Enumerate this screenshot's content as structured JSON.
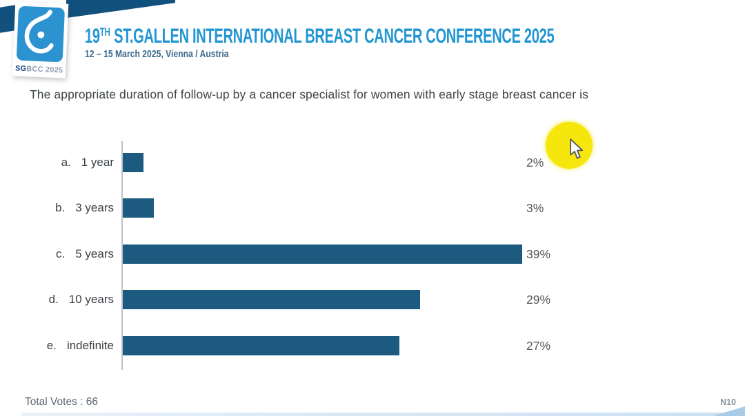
{
  "header": {
    "logo": {
      "glyph": "breast-drop-icon",
      "badge_strong": "SG",
      "badge_rest": "BCC 2025"
    },
    "title_num": "19",
    "title_sup": "TH",
    "title_rest": " ST.GALLEN INTERNATIONAL BREAST CANCER CONFERENCE 2025",
    "subtitle": "12 – 15 March 2025, Vienna / Austria"
  },
  "question": "The appropriate duration of follow-up by a cancer specialist for women with early stage breast cancer is",
  "chart_data": {
    "type": "bar",
    "orientation": "horizontal",
    "letters": [
      "a.",
      "b.",
      "c.",
      "d.",
      "e."
    ],
    "categories": [
      "1 year",
      "3 years",
      "5 years",
      "10 years",
      "indefinite"
    ],
    "values": [
      2,
      3,
      39,
      29,
      27
    ],
    "value_suffix": "%",
    "xlim": [
      0,
      39
    ],
    "grid": false,
    "legend": false,
    "bar_color": "#1D5A80",
    "value_label_position": "right column"
  },
  "footer": {
    "total_votes": "Total Votes : 66",
    "slide_code": "N10"
  },
  "overlay": {
    "highlight_color": "#F5E60C",
    "cursor": "arrow-pointer"
  },
  "colors": {
    "title_blue": "#2196D2",
    "subtitle_blue": "#3A688C",
    "ribbon_navy": "#12507E",
    "logo_blue": "#2D93D0",
    "bar_blue": "#1D5A80",
    "text_dark": "#3E4448",
    "text_gray": "#56595C"
  }
}
